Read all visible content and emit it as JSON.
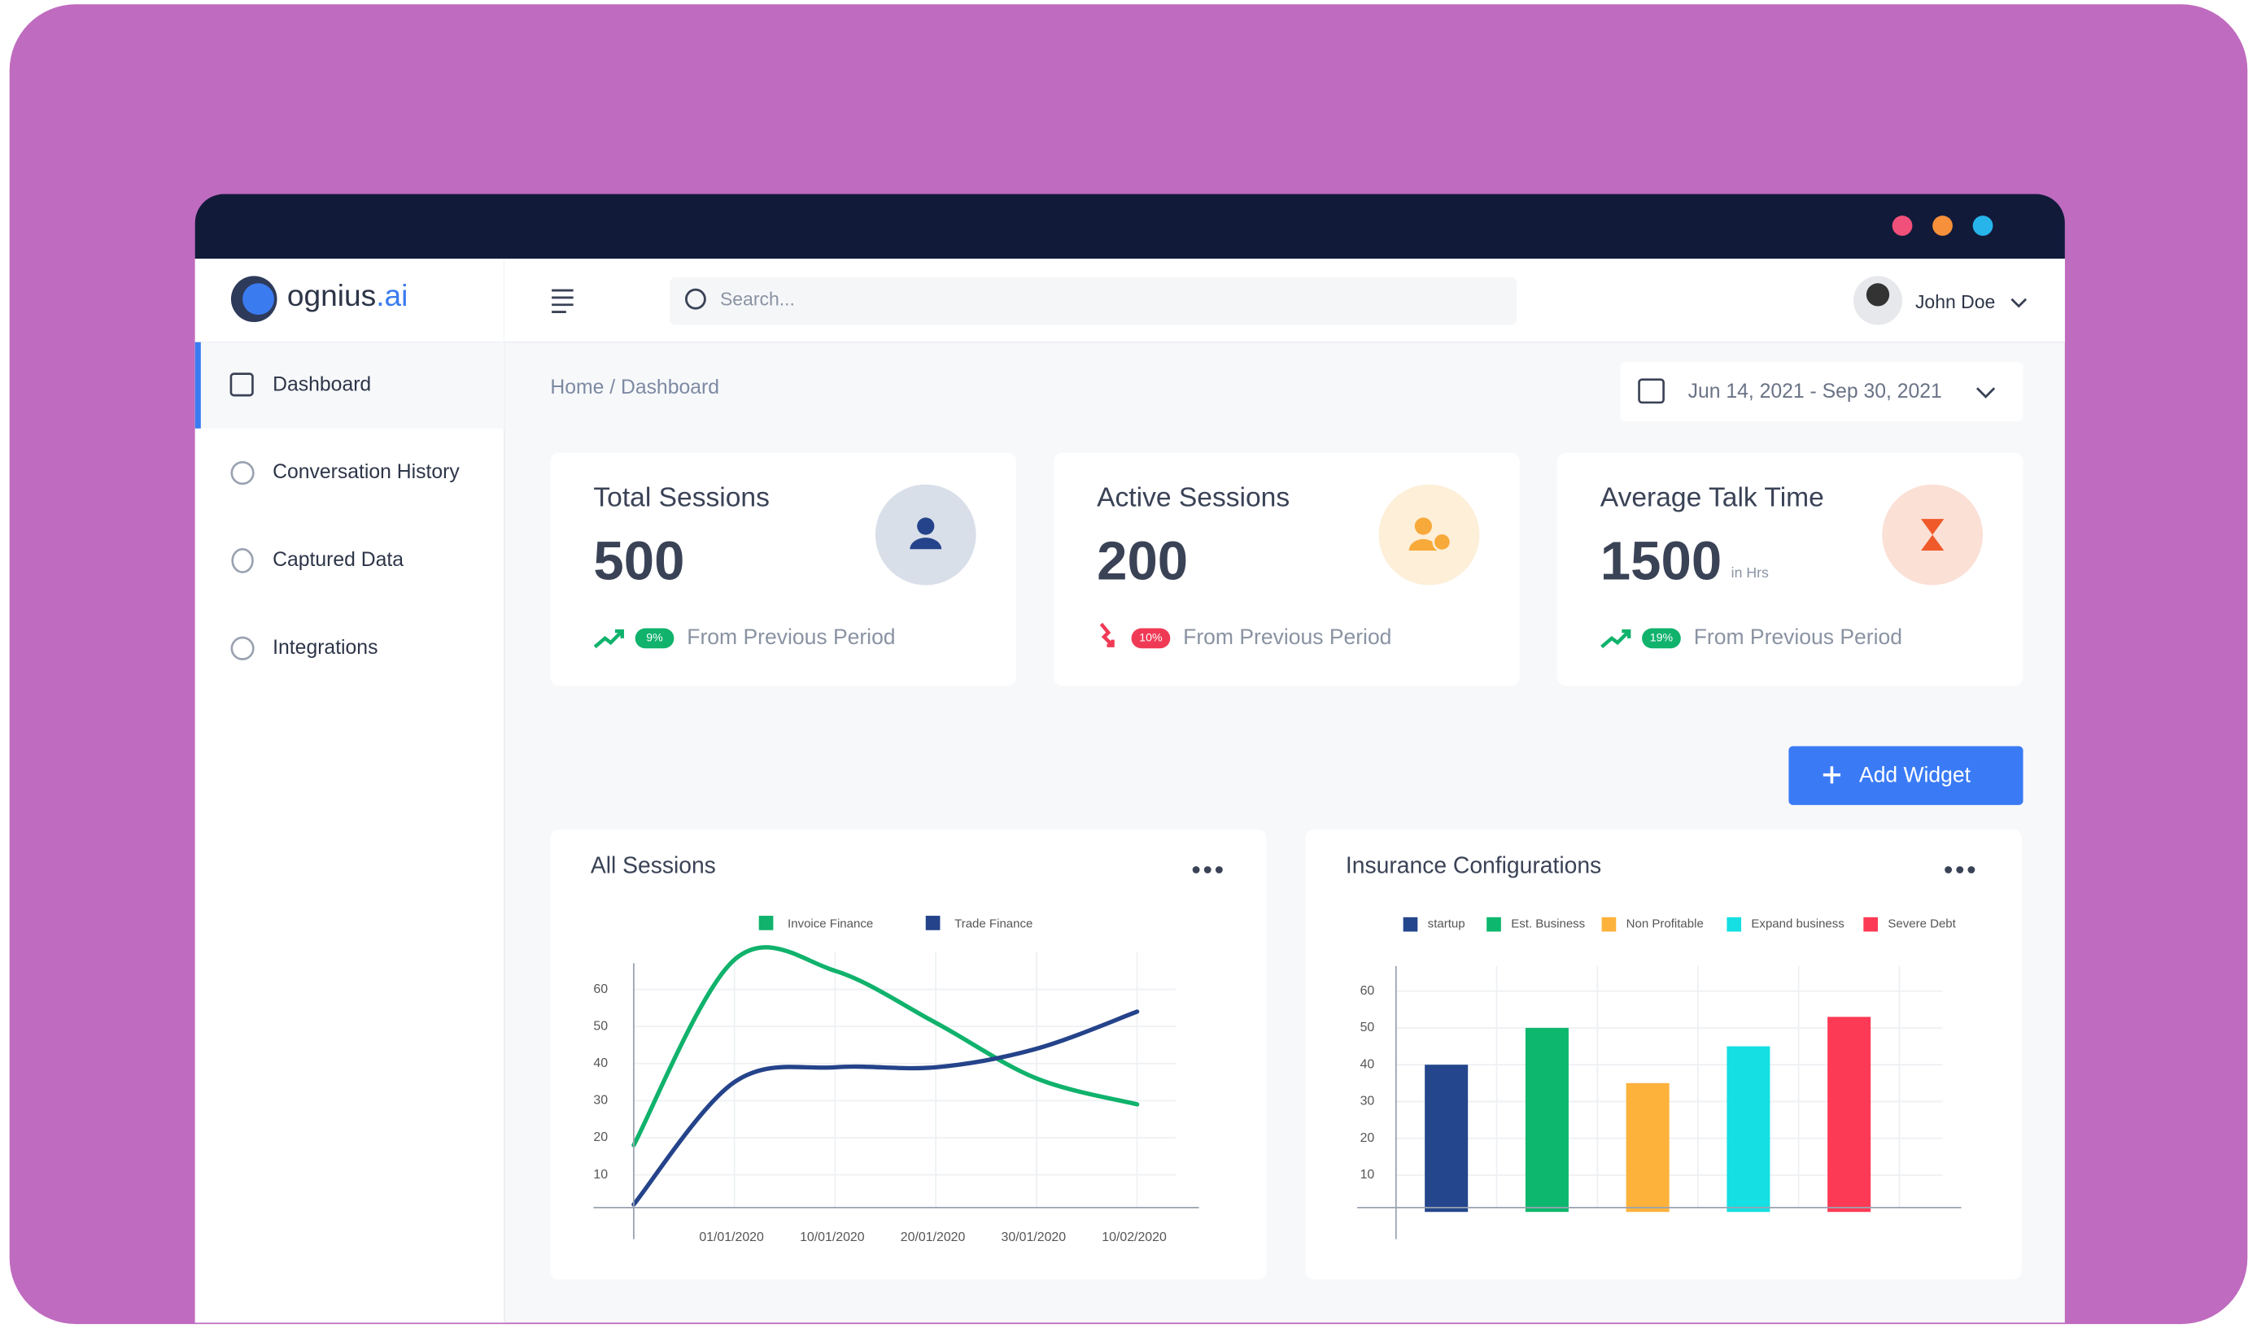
{
  "logo": {
    "name": "ognius",
    "suffix": ".ai"
  },
  "sidebar": [
    "Dashboard",
    "Conversation History",
    "Captured Data",
    "Integrations"
  ],
  "search": "Search...",
  "user": "John Doe",
  "breadcrumb": "Home / Dashboard",
  "date_range": "Jun 14, 2021 - Sep 30, 2021",
  "cards": [
    {
      "title": "Total Sessions",
      "value": "500",
      "change": "9%",
      "note": "From Previous Period"
    },
    {
      "title": "Active Sessions",
      "value": "200",
      "change": "10%",
      "note": "From Previous Period"
    },
    {
      "title": "Average Talk Time",
      "value": "1500",
      "unit": "in Hrs",
      "change": "19%",
      "note": "From Previous Period"
    }
  ],
  "button": "Add Widget",
  "chart_data": [
    {
      "type": "line",
      "title": "All Sessions",
      "categories": [
        null,
        "01/01/2020",
        "10/01/2020",
        "20/01/2020",
        "30/01/2020",
        "10/02/2020"
      ],
      "series": [
        {
          "name": "Invoice Finance",
          "color": "#10b26c",
          "values": [
            18,
            68,
            65,
            51,
            36,
            29
          ]
        },
        {
          "name": "Trade Finance",
          "color": "#24438a",
          "values": [
            2,
            35,
            39,
            39,
            44,
            54
          ]
        }
      ],
      "ylim": [
        0,
        70
      ],
      "yticks": [
        10,
        20,
        30,
        40,
        50,
        60
      ],
      "grid": true
    },
    {
      "type": "bar",
      "title": "Insurance Configurations",
      "series": [
        {
          "name": "startup",
          "color": "#24468c",
          "values": [
            40
          ]
        },
        {
          "name": "Est. Business",
          "color": "#0db76d",
          "values": [
            50
          ]
        },
        {
          "name": "Non Profitable",
          "color": "#fdb23c",
          "values": [
            35
          ]
        },
        {
          "name": "Expand business",
          "color": "#15dfe2",
          "values": [
            45
          ]
        },
        {
          "name": "Severe Debt",
          "color": "#fd3a55",
          "values": [
            53
          ]
        }
      ],
      "ylim": [
        0,
        70
      ],
      "yticks": [
        10,
        20,
        30,
        40,
        50,
        60
      ],
      "grid": true
    }
  ]
}
